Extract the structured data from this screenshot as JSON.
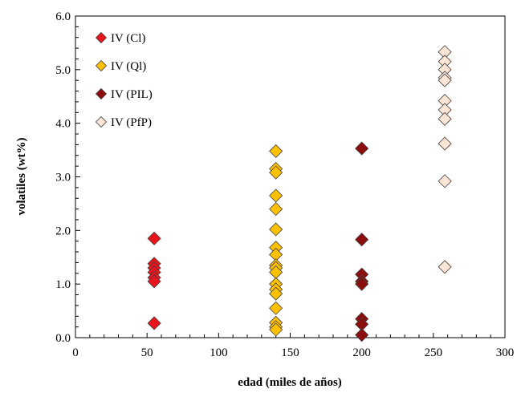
{
  "chart_data": {
    "type": "scatter",
    "xlabel": "edad (miles de años)",
    "ylabel": "volatiles  (wt%)",
    "xlim": [
      0,
      300
    ],
    "ylim": [
      0,
      6
    ],
    "x_ticks": [
      "0",
      "50",
      "100",
      "150",
      "200",
      "250",
      "300"
    ],
    "y_ticks": [
      "0.0",
      "1.0",
      "2.0",
      "3.0",
      "4.0",
      "5.0",
      "6.0"
    ],
    "x_tick_values": [
      0,
      50,
      100,
      150,
      200,
      250,
      300
    ],
    "y_tick_values": [
      0,
      1,
      2,
      3,
      4,
      5,
      6
    ],
    "grid": false,
    "legend_position": "top-left",
    "marker": "diamond",
    "series": [
      {
        "name": "IV (Cl)",
        "color": "#e8141c",
        "points": [
          [
            55,
            1.85
          ],
          [
            55,
            1.38
          ],
          [
            55,
            1.3
          ],
          [
            55,
            1.22
          ],
          [
            55,
            1.12
          ],
          [
            55,
            1.05
          ],
          [
            55,
            0.27
          ]
        ]
      },
      {
        "name": "IV (Ql)",
        "color": "#ffc000",
        "points": [
          [
            140,
            3.48
          ],
          [
            140,
            3.15
          ],
          [
            140,
            3.08
          ],
          [
            140,
            2.65
          ],
          [
            140,
            2.4
          ],
          [
            140,
            2.02
          ],
          [
            140,
            1.68
          ],
          [
            140,
            1.55
          ],
          [
            140,
            1.35
          ],
          [
            140,
            1.3
          ],
          [
            140,
            1.22
          ],
          [
            140,
            1.0
          ],
          [
            140,
            0.9
          ],
          [
            140,
            0.82
          ],
          [
            140,
            0.55
          ],
          [
            140,
            0.28
          ],
          [
            140,
            0.2
          ],
          [
            140,
            0.15
          ]
        ]
      },
      {
        "name": "IV (PIL)",
        "color": "#8b0d0d",
        "points": [
          [
            200,
            3.53
          ],
          [
            200,
            1.83
          ],
          [
            200,
            1.18
          ],
          [
            200,
            1.05
          ],
          [
            200,
            1.0
          ],
          [
            200,
            0.35
          ],
          [
            200,
            0.25
          ],
          [
            200,
            0.05
          ]
        ]
      },
      {
        "name": "IV (PfP)",
        "color": "#fce4d6",
        "points": [
          [
            258,
            5.33
          ],
          [
            258,
            5.15
          ],
          [
            258,
            5.0
          ],
          [
            258,
            4.85
          ],
          [
            258,
            4.8
          ],
          [
            258,
            4.42
          ],
          [
            258,
            4.25
          ],
          [
            258,
            4.08
          ],
          [
            258,
            3.62
          ],
          [
            258,
            2.92
          ],
          [
            258,
            1.32
          ]
        ]
      }
    ]
  }
}
